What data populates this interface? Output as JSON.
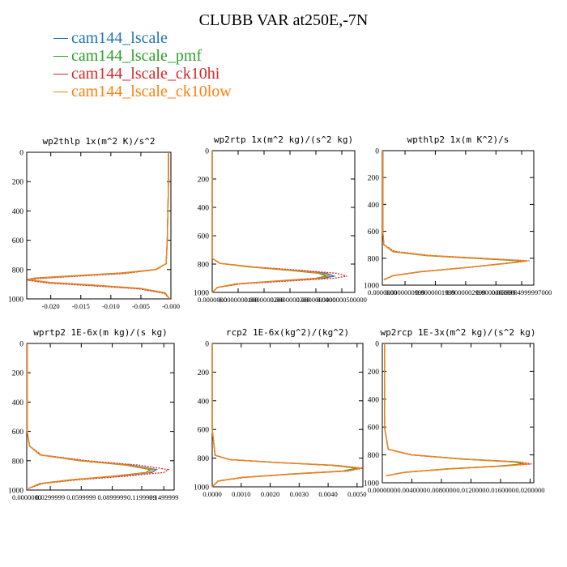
{
  "title": "CLUBB VAR at250E,-7N",
  "legend": [
    {
      "name": "cam144_lscale",
      "color": "#1f77b4"
    },
    {
      "name": "cam144_lscale_pmf",
      "color": "#2ca02c"
    },
    {
      "name": "cam144_lscale_ck10hi",
      "color": "#d62728"
    },
    {
      "name": "cam144_lscale_ck10low",
      "color": "#ff7f0e"
    }
  ],
  "chart_data": [
    {
      "type": "line",
      "title": "wp2thlp  1x(m^2 K)/s^2",
      "xlim": [
        -0.024,
        0.0
      ],
      "ylim": [
        1000,
        0
      ],
      "yticks": [
        "0",
        "200",
        "400",
        "600",
        "800",
        "1000"
      ],
      "xticks": [
        {
          "value": -0.02,
          "label": "-0.020"
        },
        {
          "value": -0.015,
          "label": "-0.015"
        },
        {
          "value": -0.01,
          "label": "-0.010"
        },
        {
          "value": -0.005,
          "label": "-0.005"
        },
        {
          "value": 0.0,
          "label": "-0.000"
        }
      ],
      "series": [
        {
          "color": "#1f77b4",
          "x": [
            -0.0004,
            -0.0004,
            -0.0005,
            -0.0006,
            -0.0008,
            -0.0025,
            -0.008,
            -0.0165,
            -0.0225,
            -0.0238,
            -0.02,
            -0.012,
            -0.005,
            -0.001,
            -0.0002
          ],
          "y": [
            0,
            200,
            400,
            600,
            760,
            800,
            825,
            845,
            860,
            870,
            890,
            910,
            930,
            960,
            1000
          ]
        },
        {
          "color": "#2ca02c",
          "x": [
            -0.0004,
            -0.0004,
            -0.0005,
            -0.0006,
            -0.0008,
            -0.0026,
            -0.0083,
            -0.0168,
            -0.0227,
            -0.0239,
            -0.0202,
            -0.0122,
            -0.0051,
            -0.001,
            -0.0002
          ],
          "y": [
            0,
            200,
            400,
            600,
            760,
            800,
            823,
            843,
            858,
            868,
            888,
            908,
            928,
            958,
            1000
          ]
        },
        {
          "color": "#d62728",
          "x": [
            -0.0004,
            -0.0004,
            -0.0005,
            -0.0006,
            -0.0008,
            -0.0024,
            -0.0078,
            -0.0162,
            -0.0223,
            -0.024,
            -0.0205,
            -0.0125,
            -0.0053,
            -0.0011,
            -0.0002
          ],
          "y": [
            0,
            200,
            400,
            600,
            760,
            800,
            827,
            847,
            862,
            872,
            892,
            912,
            932,
            962,
            1000
          ]
        },
        {
          "color": "#ff7f0e",
          "x": [
            -0.0004,
            -0.0004,
            -0.0005,
            -0.0006,
            -0.0008,
            -0.0025,
            -0.0081,
            -0.0166,
            -0.0226,
            -0.0237,
            -0.0199,
            -0.0119,
            -0.005,
            -0.001,
            -0.0002
          ],
          "y": [
            0,
            200,
            400,
            600,
            760,
            800,
            824,
            844,
            859,
            869,
            889,
            909,
            929,
            959,
            1000
          ]
        }
      ]
    },
    {
      "type": "line",
      "title": "wp2rtp  1x(m^2 kg)/(s^2 kg)",
      "xlim": [
        0.0,
        5.5e-08
      ],
      "ylim": [
        1000,
        0
      ],
      "yticks": [
        "0",
        "200",
        "400",
        "600",
        "800",
        "1000"
      ],
      "xticks": [
        {
          "value": 0.0,
          "label": "0.0000000"
        },
        {
          "value": 1e-08,
          "label": "0.0000000100"
        },
        {
          "value": 2e-08,
          "label": "0.0000000200"
        },
        {
          "value": 3e-08,
          "label": "0.0000000300"
        },
        {
          "value": 4e-08,
          "label": "0.0000000400"
        },
        {
          "value": 5e-08,
          "label": "0.0000000500000"
        }
      ],
      "series": [
        {
          "color": "#1f77b4",
          "x": [
            0,
            0,
            0,
            0,
            0,
            3e-09,
            1.5e-08,
            3.2e-08,
            4.4e-08,
            4.7e-08,
            4.3e-08,
            2.6e-08,
            1e-08,
            2e-09,
            0
          ],
          "y": [
            0,
            200,
            400,
            600,
            760,
            795,
            820,
            845,
            865,
            885,
            900,
            920,
            940,
            965,
            1000
          ]
        },
        {
          "color": "#2ca02c",
          "x": [
            0,
            0,
            0,
            0,
            0,
            3e-09,
            1.4e-08,
            3e-08,
            4.1e-08,
            4.4e-08,
            4e-08,
            2.4e-08,
            9e-09,
            2e-09,
            0
          ],
          "y": [
            0,
            200,
            400,
            600,
            760,
            795,
            820,
            845,
            865,
            885,
            900,
            920,
            940,
            965,
            1000
          ]
        },
        {
          "color": "#d62728",
          "x": [
            0,
            0,
            0,
            0,
            0,
            3e-09,
            1.6e-08,
            3.5e-08,
            4.8e-08,
            5.2e-08,
            4.7e-08,
            2.9e-08,
            1.1e-08,
            2e-09,
            0
          ],
          "y": [
            0,
            200,
            400,
            600,
            760,
            795,
            820,
            845,
            865,
            885,
            900,
            920,
            940,
            965,
            1000
          ]
        },
        {
          "color": "#ff7f0e",
          "x": [
            0,
            0,
            0,
            0,
            0,
            3e-09,
            1.5e-08,
            3.1e-08,
            4.2e-08,
            4.55e-08,
            4.1e-08,
            2.5e-08,
            9.5e-09,
            2e-09,
            0
          ],
          "y": [
            0,
            200,
            400,
            600,
            760,
            795,
            820,
            845,
            865,
            885,
            900,
            920,
            940,
            965,
            1000
          ]
        }
      ]
    },
    {
      "type": "line",
      "title": "wpthlp2  1x(m K^2)/s",
      "xlim": [
        0.0,
        1.0
      ],
      "ylim": [
        1000,
        0
      ],
      "yticks": [
        "0",
        "200",
        "400",
        "600",
        "800",
        "1000"
      ],
      "xticks": [
        {
          "value": 0.0,
          "label": "0.0000000"
        },
        {
          "value": 0.15,
          "label": "0.0000000999"
        },
        {
          "value": 0.35,
          "label": "0.0000001999"
        },
        {
          "value": 0.55,
          "label": "0.0000002999"
        },
        {
          "value": 0.75,
          "label": "0.0000003999"
        },
        {
          "value": 0.92,
          "label": "0.0000004999997000"
        }
      ],
      "series": [
        {
          "color": "#1f77b4",
          "x": [
            0.003,
            0.003,
            0.003,
            0.003,
            0.01,
            0.07,
            0.3,
            0.62,
            0.95,
            0.8,
            0.55,
            0.25,
            0.07,
            0.01
          ],
          "y": [
            0,
            200,
            400,
            600,
            700,
            750,
            780,
            800,
            820,
            840,
            870,
            900,
            930,
            960
          ]
        },
        {
          "color": "#2ca02c",
          "x": [
            0.003,
            0.003,
            0.003,
            0.003,
            0.01,
            0.07,
            0.29,
            0.61,
            0.94,
            0.79,
            0.54,
            0.25,
            0.07,
            0.01
          ],
          "y": [
            0,
            200,
            400,
            600,
            700,
            751,
            781,
            801,
            821,
            841,
            871,
            901,
            931,
            961
          ]
        },
        {
          "color": "#d62728",
          "x": [
            0.003,
            0.003,
            0.003,
            0.003,
            0.01,
            0.08,
            0.31,
            0.64,
            0.97,
            0.82,
            0.56,
            0.26,
            0.07,
            0.01
          ],
          "y": [
            0,
            200,
            400,
            600,
            700,
            749,
            779,
            799,
            819,
            839,
            869,
            899,
            929,
            959
          ]
        },
        {
          "color": "#ff7f0e",
          "x": [
            0.003,
            0.003,
            0.003,
            0.003,
            0.01,
            0.07,
            0.3,
            0.63,
            0.96,
            0.81,
            0.55,
            0.25,
            0.07,
            0.01
          ],
          "y": [
            0,
            200,
            400,
            600,
            700,
            750,
            780,
            800,
            820,
            840,
            870,
            900,
            930,
            960
          ]
        }
      ]
    },
    {
      "type": "line",
      "title": "wprtp2  1E-6x(m kg)/(s kg)",
      "xlim": [
        0.0,
        1.0
      ],
      "ylim": [
        1000,
        0
      ],
      "yticks": [
        "0",
        "200",
        "400",
        "600",
        "800",
        "1000"
      ],
      "xticks": [
        {
          "value": 0.0,
          "label": "0.0000000"
        },
        {
          "value": 0.16,
          "label": "0.0299999"
        },
        {
          "value": 0.37,
          "label": "0.0599999"
        },
        {
          "value": 0.58,
          "label": "0.0899999"
        },
        {
          "value": 0.78,
          "label": "0.1199999"
        },
        {
          "value": 0.93,
          "label": "0.1499999"
        }
      ],
      "series": [
        {
          "color": "#1f77b4",
          "x": [
            0.003,
            0.003,
            0.003,
            0.003,
            0.02,
            0.09,
            0.38,
            0.7,
            0.88,
            0.85,
            0.62,
            0.32,
            0.1,
            0.01
          ],
          "y": [
            0,
            200,
            400,
            600,
            700,
            760,
            800,
            830,
            860,
            880,
            905,
            930,
            955,
            990
          ]
        },
        {
          "color": "#2ca02c",
          "x": [
            0.003,
            0.003,
            0.003,
            0.003,
            0.02,
            0.09,
            0.36,
            0.67,
            0.84,
            0.81,
            0.59,
            0.3,
            0.09,
            0.01
          ],
          "y": [
            0,
            200,
            400,
            600,
            700,
            760,
            800,
            830,
            860,
            880,
            905,
            930,
            955,
            990
          ]
        },
        {
          "color": "#d62728",
          "x": [
            0.003,
            0.003,
            0.003,
            0.003,
            0.02,
            0.1,
            0.41,
            0.76,
            0.96,
            0.93,
            0.68,
            0.35,
            0.11,
            0.01
          ],
          "y": [
            0,
            200,
            400,
            600,
            700,
            760,
            800,
            830,
            860,
            880,
            905,
            930,
            955,
            990
          ]
        },
        {
          "color": "#ff7f0e",
          "x": [
            0.003,
            0.003,
            0.003,
            0.003,
            0.02,
            0.09,
            0.37,
            0.68,
            0.86,
            0.83,
            0.6,
            0.31,
            0.1,
            0.01
          ],
          "y": [
            0,
            200,
            400,
            600,
            700,
            760,
            800,
            830,
            860,
            880,
            905,
            930,
            955,
            990
          ]
        }
      ]
    },
    {
      "type": "line",
      "title": "rcp2  1E-6x(kg^2)/(kg^2)",
      "xlim": [
        0.0,
        0.0052
      ],
      "ylim": [
        1000,
        0
      ],
      "yticks": [
        "0",
        "200",
        "400",
        "600",
        "800",
        "1000"
      ],
      "xticks": [
        {
          "value": 0.0,
          "label": "0.0000"
        },
        {
          "value": 0.001,
          "label": "0.0010"
        },
        {
          "value": 0.002,
          "label": "0.0020"
        },
        {
          "value": 0.003,
          "label": "0.0030"
        },
        {
          "value": 0.004,
          "label": "0.0040"
        },
        {
          "value": 0.005,
          "label": "0.0050"
        }
      ],
      "series": [
        {
          "color": "#1f77b4",
          "x": [
            0.0,
            0.0,
            0.0,
            0.0,
            0.0001,
            0.0006,
            0.0022,
            0.0042,
            0.0051,
            0.0046,
            0.0028,
            0.001,
            0.0002,
            0.0
          ],
          "y": [
            0,
            200,
            400,
            600,
            780,
            810,
            830,
            850,
            870,
            890,
            910,
            935,
            960,
            1000
          ]
        },
        {
          "color": "#2ca02c",
          "x": [
            0.0,
            0.0,
            0.0,
            0.0,
            0.0001,
            0.0006,
            0.0021,
            0.0041,
            0.005,
            0.0045,
            0.0027,
            0.001,
            0.0002,
            0.0
          ],
          "y": [
            0,
            200,
            400,
            600,
            780,
            810,
            830,
            850,
            870,
            890,
            910,
            935,
            960,
            1000
          ]
        },
        {
          "color": "#d62728",
          "x": [
            0.0,
            0.0,
            0.0,
            0.0,
            0.0001,
            0.0006,
            0.0022,
            0.0043,
            0.0052,
            0.0047,
            0.0029,
            0.0011,
            0.0002,
            0.0
          ],
          "y": [
            0,
            200,
            400,
            600,
            780,
            810,
            830,
            850,
            870,
            890,
            910,
            935,
            960,
            1000
          ]
        },
        {
          "color": "#ff7f0e",
          "x": [
            0.0,
            0.0,
            0.0,
            0.0,
            0.0001,
            0.0006,
            0.0022,
            0.0042,
            0.00515,
            0.00465,
            0.0028,
            0.001,
            0.0002,
            0.0
          ],
          "y": [
            0,
            200,
            400,
            600,
            780,
            810,
            830,
            850,
            870,
            890,
            910,
            935,
            960,
            1000
          ]
        }
      ]
    },
    {
      "type": "line",
      "title": "wp2rcp  1E-3x(m^2 kg)/(s^2 kg)",
      "xlim": [
        0.0,
        0.0205
      ],
      "ylim": [
        1000,
        0
      ],
      "yticks": [
        "0",
        "200",
        "400",
        "600",
        "800",
        "1000"
      ],
      "xticks": [
        {
          "value": 0.0,
          "label": "0.0000000"
        },
        {
          "value": 0.004,
          "label": "0.0040000"
        },
        {
          "value": 0.008,
          "label": "0.0080000"
        },
        {
          "value": 0.012,
          "label": "0.0120000"
        },
        {
          "value": 0.016,
          "label": "0.0160000"
        },
        {
          "value": 0.02,
          "label": "0.0200000"
        }
      ],
      "series": [
        {
          "color": "#1f77b4",
          "x": [
            0.0003,
            0.0003,
            0.0003,
            0.0003,
            0.0008,
            0.004,
            0.011,
            0.018,
            0.0195,
            0.016,
            0.009,
            0.003,
            0.0005
          ],
          "y": [
            0,
            200,
            400,
            600,
            760,
            800,
            830,
            850,
            865,
            880,
            900,
            925,
            950
          ]
        },
        {
          "color": "#2ca02c",
          "x": [
            0.0003,
            0.0003,
            0.0003,
            0.0003,
            0.0008,
            0.0039,
            0.0108,
            0.0177,
            0.0192,
            0.0157,
            0.0088,
            0.0029,
            0.0005
          ],
          "y": [
            0,
            200,
            400,
            600,
            760,
            800,
            830,
            850,
            865,
            880,
            900,
            925,
            950
          ]
        },
        {
          "color": "#d62728",
          "x": [
            0.0003,
            0.0003,
            0.0003,
            0.0003,
            0.0008,
            0.0041,
            0.0113,
            0.0185,
            0.0202,
            0.0165,
            0.0093,
            0.0031,
            0.0005
          ],
          "y": [
            0,
            200,
            400,
            600,
            760,
            800,
            830,
            850,
            865,
            880,
            900,
            925,
            950
          ]
        },
        {
          "color": "#ff7f0e",
          "x": [
            0.0003,
            0.0003,
            0.0003,
            0.0003,
            0.0008,
            0.004,
            0.0111,
            0.0182,
            0.0198,
            0.0162,
            0.0091,
            0.003,
            0.0005
          ],
          "y": [
            0,
            200,
            400,
            600,
            760,
            800,
            830,
            850,
            865,
            880,
            900,
            925,
            950
          ]
        }
      ]
    }
  ]
}
